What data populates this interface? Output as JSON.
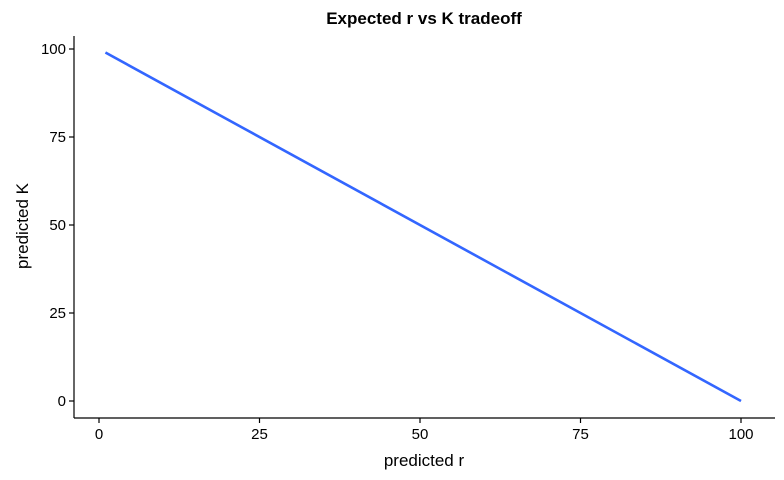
{
  "chart_data": {
    "type": "line",
    "title": "Expected r vs K tradeoff",
    "xlabel": "predicted r",
    "ylabel": "predicted K",
    "xlim": [
      0,
      100
    ],
    "ylim": [
      0,
      100
    ],
    "x_ticks": [
      0,
      25,
      50,
      75,
      100
    ],
    "y_ticks": [
      0,
      25,
      50,
      75,
      100
    ],
    "grid": false,
    "legend": "none",
    "series": [
      {
        "color": "#3366FF",
        "x": [
          1,
          100
        ],
        "y": [
          99,
          0
        ]
      }
    ]
  }
}
